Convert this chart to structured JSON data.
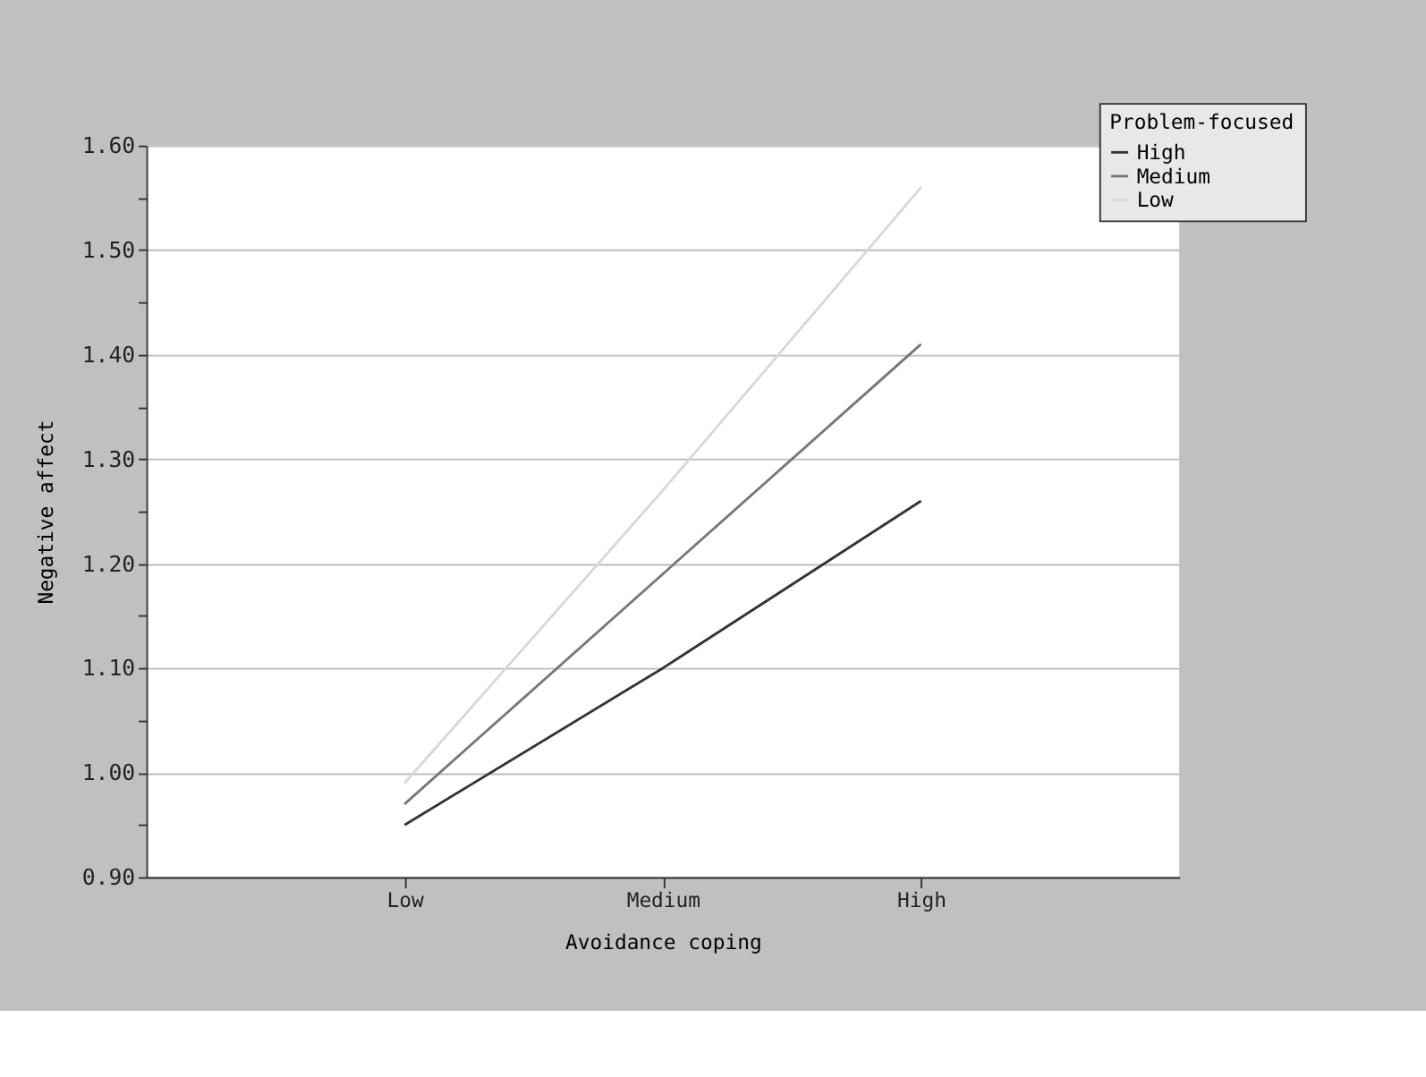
{
  "chart_data": {
    "type": "line",
    "xlabel": "Avoidance coping",
    "ylabel": "Negative affect",
    "legend_title": "Problem-focused",
    "categories": [
      "Low",
      "Medium",
      "High"
    ],
    "series": [
      {
        "name": "High",
        "color": "#333333",
        "values": [
          0.95,
          1.1,
          1.26
        ]
      },
      {
        "name": "Medium",
        "color": "#777777",
        "values": [
          0.97,
          1.19,
          1.41
        ]
      },
      {
        "name": "Low",
        "color": "#d8d8d8",
        "values": [
          0.99,
          1.27,
          1.56
        ]
      }
    ],
    "ylim": [
      0.9,
      1.6
    ],
    "yticks": [
      {
        "value": 0.9,
        "label": "0.90"
      },
      {
        "value": 0.95,
        "label": null
      },
      {
        "value": 1.0,
        "label": "1.00"
      },
      {
        "value": 1.05,
        "label": null
      },
      {
        "value": 1.1,
        "label": "1.10"
      },
      {
        "value": 1.15,
        "label": null
      },
      {
        "value": 1.2,
        "label": "1.20"
      },
      {
        "value": 1.25,
        "label": null
      },
      {
        "value": 1.3,
        "label": "1.30"
      },
      {
        "value": 1.35,
        "label": null
      },
      {
        "value": 1.4,
        "label": "1.40"
      },
      {
        "value": 1.45,
        "label": null
      },
      {
        "value": 1.5,
        "label": "1.50"
      },
      {
        "value": 1.55,
        "label": null
      },
      {
        "value": 1.6,
        "label": "1.60"
      }
    ],
    "grid": "y",
    "legend": "top right",
    "marker": "none",
    "line_style": "solid"
  }
}
